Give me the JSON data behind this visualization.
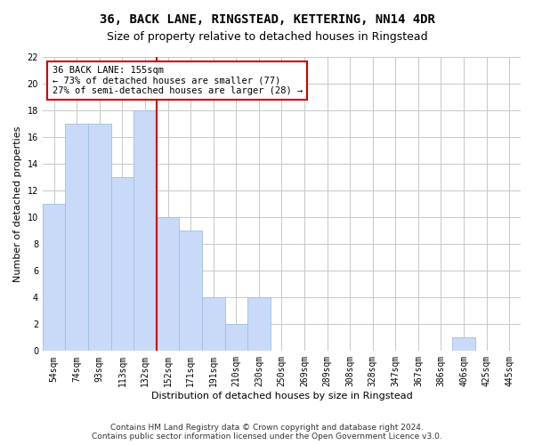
{
  "title": "36, BACK LANE, RINGSTEAD, KETTERING, NN14 4DR",
  "subtitle": "Size of property relative to detached houses in Ringstead",
  "xlabel": "Distribution of detached houses by size in Ringstead",
  "ylabel": "Number of detached properties",
  "categories": [
    "54sqm",
    "74sqm",
    "93sqm",
    "113sqm",
    "132sqm",
    "152sqm",
    "171sqm",
    "191sqm",
    "210sqm",
    "230sqm",
    "250sqm",
    "269sqm",
    "289sqm",
    "308sqm",
    "328sqm",
    "347sqm",
    "367sqm",
    "386sqm",
    "406sqm",
    "425sqm",
    "445sqm"
  ],
  "values": [
    11,
    17,
    17,
    13,
    18,
    10,
    9,
    4,
    2,
    4,
    0,
    0,
    0,
    0,
    0,
    0,
    0,
    0,
    1,
    0,
    0
  ],
  "bar_color": "#c9daf8",
  "bar_edge_color": "#a0bfe0",
  "vline_color": "#cc0000",
  "annotation_text": "36 BACK LANE: 155sqm\n← 73% of detached houses are smaller (77)\n27% of semi-detached houses are larger (28) →",
  "annotation_box_color": "white",
  "annotation_box_edge_color": "#cc0000",
  "ylim": [
    0,
    22
  ],
  "yticks": [
    0,
    2,
    4,
    6,
    8,
    10,
    12,
    14,
    16,
    18,
    20,
    22
  ],
  "footer_text": "Contains HM Land Registry data © Crown copyright and database right 2024.\nContains public sector information licensed under the Open Government Licence v3.0.",
  "background_color": "#ffffff",
  "grid_color": "#c8c8c8",
  "title_fontsize": 10,
  "subtitle_fontsize": 9,
  "axis_label_fontsize": 8,
  "tick_fontsize": 7,
  "annotation_fontsize": 7.5,
  "footer_fontsize": 6.5
}
